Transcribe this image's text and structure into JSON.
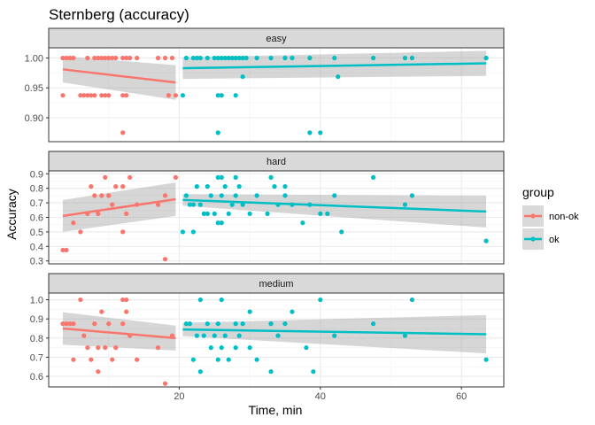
{
  "chart_data": {
    "type": "scatter",
    "title": "Sternberg (accuracy)",
    "xlabel": "Time, min",
    "ylabel": "Accuracy",
    "xlim": [
      1.5,
      66
    ],
    "x_ticks": [
      "20",
      "40",
      "60"
    ],
    "x_tick_values": [
      20,
      40,
      60
    ],
    "grid": true,
    "legend": {
      "title": "group",
      "position": "right",
      "entries": [
        {
          "label": "non-ok",
          "color": "#F8766D"
        },
        {
          "label": "ok",
          "color": "#00BFC4"
        }
      ]
    },
    "band_color": "#999999",
    "facets": [
      {
        "label": "easy",
        "ylim": [
          0.86,
          1.017
        ],
        "y_ticks": [
          "0.90",
          "0.95",
          "1.00"
        ],
        "y_tick_values": [
          0.9,
          0.95,
          1.0
        ],
        "fits": [
          {
            "group": "non-ok",
            "x": [
              3.5,
              19.5
            ],
            "y": [
              0.981,
              0.959
            ],
            "ci_low": [
              0.959,
              0.93
            ],
            "ci_high": [
              1.003,
              0.988
            ]
          },
          {
            "group": "ok",
            "x": [
              20.5,
              63.5
            ],
            "y": [
              0.983,
              0.991
            ],
            "ci_low": [
              0.965,
              0.97
            ],
            "ci_high": [
              1.001,
              1.012
            ]
          }
        ],
        "series": [
          {
            "group": "non-ok",
            "x": [
              3.5,
              4,
              4.5,
              5,
              7,
              8,
              8.5,
              9,
              9.5,
              10,
              10.5,
              11,
              12,
              12.5,
              13,
              14,
              17,
              18,
              19,
              3.5,
              6,
              6.5,
              7,
              7.5,
              8,
              9,
              9.5,
              10,
              12,
              12.5,
              18.5,
              19.5,
              12
            ],
            "y": [
              1,
              1,
              1,
              1,
              1,
              1,
              1,
              1,
              1,
              1,
              1,
              1,
              1,
              1,
              1,
              1,
              1,
              1,
              1,
              0.9375,
              0.9375,
              0.9375,
              0.9375,
              0.9375,
              0.9375,
              0.9375,
              0.9375,
              0.9375,
              0.9375,
              0.9375,
              0.9375,
              0.9375,
              0.875
            ]
          },
          {
            "group": "ok",
            "x": [
              21,
              22,
              22.5,
              23,
              24,
              25,
              25.5,
              26,
              26.5,
              27,
              27.5,
              28,
              28.5,
              29,
              29.5,
              31,
              33,
              35,
              36,
              38.5,
              42,
              47.5,
              52,
              53,
              63.5,
              29,
              42.5,
              20.5,
              25.5,
              26,
              28,
              25.5,
              38.5,
              40
            ],
            "y": [
              1,
              1,
              1,
              1,
              1,
              1,
              1,
              1,
              1,
              1,
              1,
              1,
              1,
              1,
              1,
              1,
              1,
              1,
              1,
              1,
              1,
              1,
              1,
              1,
              1,
              0.96875,
              0.96875,
              0.9375,
              0.9375,
              0.9375,
              0.9375,
              0.875,
              0.875,
              0.875
            ]
          }
        ]
      },
      {
        "label": "hard",
        "ylim": [
          0.28,
          0.92
        ],
        "y_ticks": [
          "0.3",
          "0.4",
          "0.5",
          "0.6",
          "0.7",
          "0.8",
          "0.9"
        ],
        "y_tick_values": [
          0.3,
          0.4,
          0.5,
          0.6,
          0.7,
          0.8,
          0.9
        ],
        "fits": [
          {
            "group": "non-ok",
            "x": [
              3.5,
              19.5
            ],
            "y": [
              0.61,
              0.725
            ],
            "ci_low": [
              0.5,
              0.61
            ],
            "ci_high": [
              0.72,
              0.84
            ]
          },
          {
            "group": "ok",
            "x": [
              20.5,
              63.5
            ],
            "y": [
              0.72,
              0.64
            ],
            "ci_low": [
              0.68,
              0.53
            ],
            "ci_high": [
              0.76,
              0.75
            ]
          }
        ],
        "series": [
          {
            "group": "non-ok",
            "x": [
              3.5,
              4,
              5,
              6,
              7,
              7.5,
              8,
              8.5,
              9,
              9.5,
              10,
              10.5,
              11,
              12,
              12.5,
              13,
              14,
              17,
              18,
              19.5,
              12,
              18
            ],
            "y": [
              0.375,
              0.375,
              0.5625,
              0.5,
              0.625,
              0.8125,
              0.75,
              0.625,
              0.75,
              0.875,
              0.75,
              0.6875,
              0.8125,
              0.8125,
              0.625,
              0.875,
              0.6875,
              0.6875,
              0.3125,
              0.875,
              0.5,
              0.75
            ]
          },
          {
            "group": "ok",
            "x": [
              21,
              21.5,
              22,
              22.5,
              23,
              23.5,
              24,
              24.5,
              25,
              25.5,
              26,
              26.5,
              27,
              27.5,
              28,
              28.5,
              29,
              30,
              31,
              32.5,
              33.5,
              34,
              35,
              36,
              37.5,
              38.5,
              40,
              41,
              42,
              43,
              47.5,
              52,
              53,
              63.5,
              20.5,
              22,
              25.5,
              26,
              28,
              26,
              33,
              24,
              35
            ],
            "y": [
              0.75,
              0.6875,
              0.6875,
              0.8125,
              0.6875,
              0.625,
              0.8125,
              0.75,
              0.625,
              0.875,
              0.75,
              0.8125,
              0.625,
              0.6875,
              0.75,
              0.8125,
              0.6875,
              0.625,
              0.75,
              0.625,
              0.8125,
              0.6875,
              0.75,
              0.6875,
              0.5625,
              0.6875,
              0.625,
              0.625,
              0.75,
              0.5,
              0.875,
              0.6875,
              0.75,
              0.4375,
              0.5,
              0.5,
              0.5625,
              0.5625,
              0.875,
              0.875,
              0.875,
              0.625,
              0.8125
            ]
          }
        ]
      },
      {
        "label": "medium",
        "ylim": [
          0.545,
          1.035
        ],
        "y_ticks": [
          "0.6",
          "0.7",
          "0.8",
          "0.9",
          "1.0"
        ],
        "y_tick_values": [
          0.6,
          0.7,
          0.8,
          0.9,
          1.0
        ],
        "fits": [
          {
            "group": "non-ok",
            "x": [
              3.5,
              19.5
            ],
            "y": [
              0.85,
              0.8
            ],
            "ci_low": [
              0.765,
              0.735
            ],
            "ci_high": [
              0.935,
              0.865
            ]
          },
          {
            "group": "ok",
            "x": [
              20.5,
              63.5
            ],
            "y": [
              0.845,
              0.82
            ],
            "ci_low": [
              0.81,
              0.72
            ],
            "ci_high": [
              0.88,
              0.92
            ]
          }
        ],
        "series": [
          {
            "group": "non-ok",
            "x": [
              3.5,
              4,
              4.5,
              5,
              6,
              6.5,
              7,
              7.5,
              8,
              8.5,
              9,
              9.5,
              10,
              10.5,
              11,
              12,
              12.5,
              13,
              14,
              17,
              18,
              19,
              12,
              12.5,
              8.5,
              5
            ],
            "y": [
              0.875,
              0.875,
              0.875,
              0.6875,
              1,
              0.8125,
              0.75,
              0.6875,
              0.875,
              0.625,
              0.9375,
              0.75,
              0.875,
              0.6875,
              0.75,
              1,
              1,
              0.8125,
              0.6875,
              0.75,
              0.5625,
              0.8125,
              0.875,
              0.9375,
              0.75,
              0.875
            ]
          },
          {
            "group": "ok",
            "x": [
              21,
              21.5,
              22,
              22.5,
              23,
              23.5,
              24,
              24.5,
              25,
              25.5,
              26,
              26.5,
              27,
              28,
              28.5,
              29,
              30,
              31,
              33,
              34,
              35,
              36,
              38,
              39,
              40,
              42,
              47.5,
              52,
              53,
              63.5,
              23,
              25.5,
              26,
              28,
              30,
              33
            ],
            "y": [
              0.875,
              0.875,
              0.6875,
              0.8125,
              1,
              0.8125,
              0.875,
              0.75,
              0.8125,
              0.6875,
              1,
              0.8125,
              0.6875,
              0.75,
              0.8125,
              0.875,
              0.9375,
              0.6875,
              0.875,
              0.8125,
              0.875,
              0.9375,
              0.75,
              0.625,
              1,
              0.8125,
              0.875,
              0.8125,
              1,
              0.6875,
              0.625,
              0.875,
              0.75,
              0.875,
              0.75,
              0.625
            ]
          }
        ]
      }
    ]
  }
}
